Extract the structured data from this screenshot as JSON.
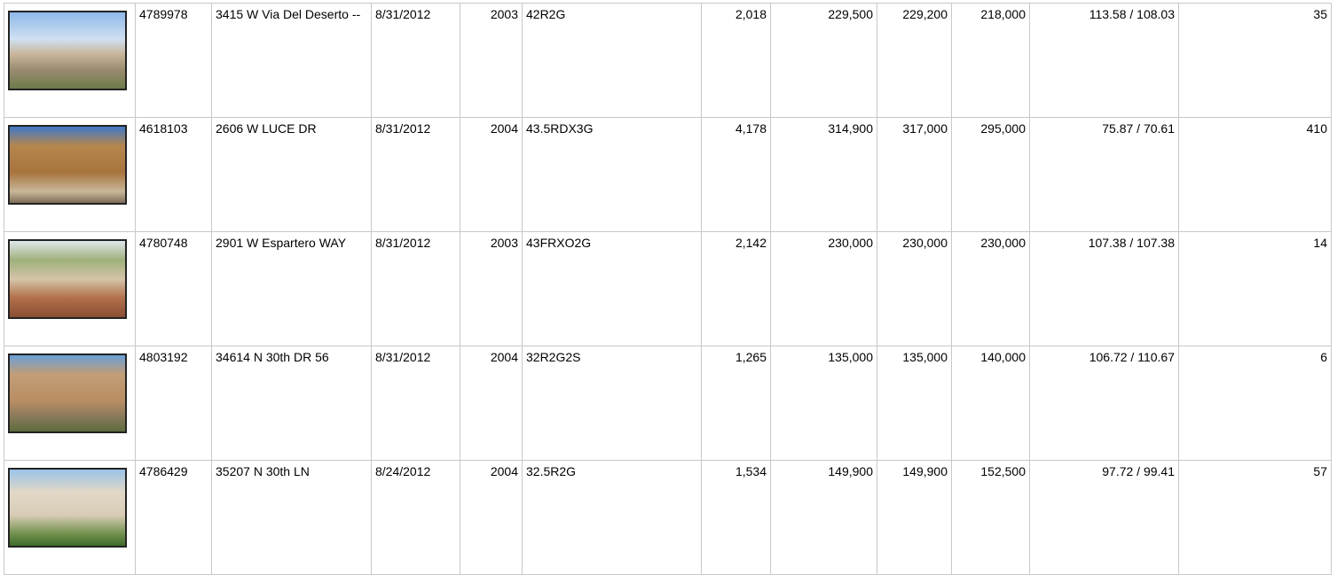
{
  "table": {
    "rows": [
      [
        "4789978",
        "3415 W Via Del Deserto --",
        "8/31/2012",
        "2003",
        "42R2G",
        "2,018",
        "229,500",
        "229,200",
        "218,000",
        "113.58 / 108.03",
        "35"
      ],
      [
        "4618103",
        "2606 W LUCE DR",
        "8/31/2012",
        "2004",
        "43.5RDX3G",
        "4,178",
        "314,900",
        "317,000",
        "295,000",
        "75.87 / 70.61",
        "410"
      ],
      [
        "4780748",
        "2901 W Espartero WAY",
        "8/31/2012",
        "2003",
        "43FRXO2G",
        "2,142",
        "230,000",
        "230,000",
        "230,000",
        "107.38 / 107.38",
        "14"
      ],
      [
        "4803192",
        "34614 N 30th DR 56",
        "8/31/2012",
        "2004",
        "32R2G2S",
        "1,265",
        "135,000",
        "135,000",
        "140,000",
        "106.72 / 110.67",
        "6"
      ],
      [
        "4786429",
        "35207 N 30th LN",
        "8/24/2012",
        "2004",
        "32.5R2G",
        "1,534",
        "149,900",
        "149,900",
        "152,500",
        "97.72 / 99.41",
        "57"
      ]
    ]
  }
}
